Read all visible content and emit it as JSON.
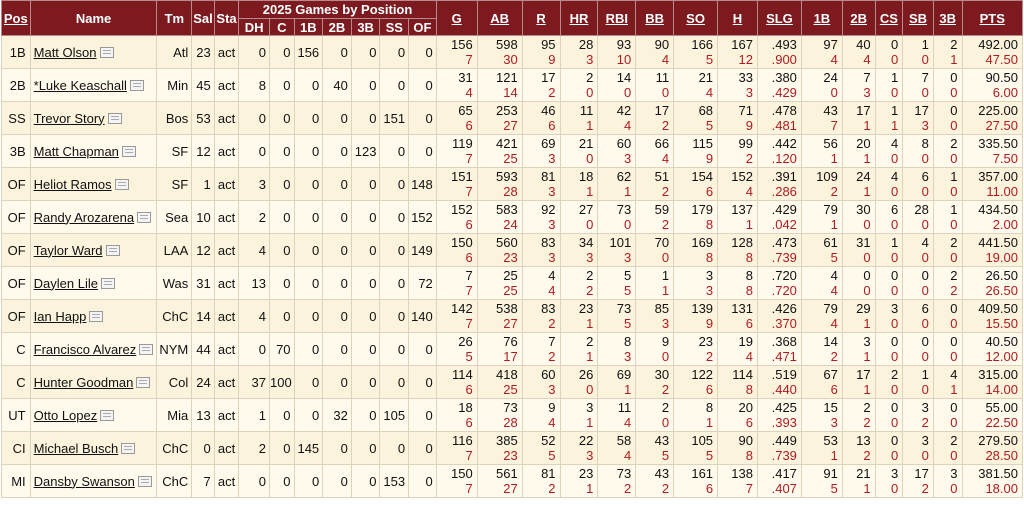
{
  "header_group": "2025 Games by Position",
  "columns": {
    "pos": "Pos",
    "name": "Name",
    "tm": "Tm",
    "sal": "Sal",
    "sta": "Sta",
    "gbp": [
      "DH",
      "C",
      "1B",
      "2B",
      "3B",
      "SS",
      "OF"
    ],
    "stats": [
      "G",
      "AB",
      "R",
      "HR",
      "RBI",
      "BB",
      "SO",
      "H",
      "SLG",
      "1B",
      "2B",
      "CS",
      "SB",
      "3B",
      "PTS"
    ]
  },
  "rows": [
    {
      "pos": "1B",
      "name": "Matt Olson",
      "tm": "Atl",
      "sal": "23",
      "sta": "act",
      "gbp": [
        "0",
        "0",
        "156",
        "0",
        "0",
        "0",
        "0"
      ],
      "tot": [
        "156",
        "598",
        "95",
        "28",
        "93",
        "90",
        "166",
        "167",
        ".493",
        "97",
        "40",
        "0",
        "1",
        "2",
        "492.00"
      ],
      "wk": [
        "7",
        "30",
        "9",
        "3",
        "10",
        "4",
        "5",
        "12",
        ".900",
        "4",
        "4",
        "0",
        "0",
        "1",
        "47.50"
      ]
    },
    {
      "pos": "2B",
      "name": "*Luke Keaschall",
      "tm": "Min",
      "sal": "45",
      "sta": "act",
      "gbp": [
        "8",
        "0",
        "0",
        "40",
        "0",
        "0",
        "0"
      ],
      "tot": [
        "31",
        "121",
        "17",
        "2",
        "14",
        "11",
        "21",
        "33",
        ".380",
        "24",
        "7",
        "1",
        "7",
        "0",
        "90.50"
      ],
      "wk": [
        "4",
        "14",
        "2",
        "0",
        "0",
        "0",
        "4",
        "3",
        ".429",
        "0",
        "3",
        "0",
        "0",
        "0",
        "6.00"
      ]
    },
    {
      "pos": "SS",
      "name": "Trevor Story",
      "tm": "Bos",
      "sal": "53",
      "sta": "act",
      "gbp": [
        "0",
        "0",
        "0",
        "0",
        "0",
        "151",
        "0"
      ],
      "tot": [
        "65",
        "253",
        "46",
        "11",
        "42",
        "17",
        "68",
        "71",
        ".478",
        "43",
        "17",
        "1",
        "17",
        "0",
        "225.00"
      ],
      "wk": [
        "6",
        "27",
        "6",
        "1",
        "4",
        "2",
        "5",
        "9",
        ".481",
        "7",
        "1",
        "1",
        "3",
        "0",
        "27.50"
      ]
    },
    {
      "pos": "3B",
      "name": "Matt Chapman",
      "tm": "SF",
      "sal": "12",
      "sta": "act",
      "gbp": [
        "0",
        "0",
        "0",
        "0",
        "123",
        "0",
        "0"
      ],
      "tot": [
        "119",
        "421",
        "69",
        "21",
        "60",
        "66",
        "115",
        "99",
        ".442",
        "56",
        "20",
        "4",
        "8",
        "2",
        "335.50"
      ],
      "wk": [
        "7",
        "25",
        "3",
        "0",
        "3",
        "4",
        "9",
        "2",
        ".120",
        "1",
        "1",
        "0",
        "0",
        "0",
        "7.50"
      ]
    },
    {
      "pos": "OF",
      "name": "Heliot Ramos",
      "tm": "SF",
      "sal": "1",
      "sta": "act",
      "gbp": [
        "3",
        "0",
        "0",
        "0",
        "0",
        "0",
        "148"
      ],
      "tot": [
        "151",
        "593",
        "81",
        "18",
        "62",
        "51",
        "154",
        "152",
        ".391",
        "109",
        "24",
        "4",
        "6",
        "1",
        "357.00"
      ],
      "wk": [
        "7",
        "28",
        "3",
        "1",
        "1",
        "2",
        "6",
        "4",
        ".286",
        "2",
        "1",
        "0",
        "0",
        "0",
        "11.00"
      ]
    },
    {
      "pos": "OF",
      "name": "Randy Arozarena",
      "tm": "Sea",
      "sal": "10",
      "sta": "act",
      "gbp": [
        "2",
        "0",
        "0",
        "0",
        "0",
        "0",
        "152"
      ],
      "tot": [
        "152",
        "583",
        "92",
        "27",
        "73",
        "59",
        "179",
        "137",
        ".429",
        "79",
        "30",
        "6",
        "28",
        "1",
        "434.50"
      ],
      "wk": [
        "6",
        "24",
        "3",
        "0",
        "0",
        "2",
        "8",
        "1",
        ".042",
        "1",
        "0",
        "0",
        "0",
        "0",
        "2.00"
      ]
    },
    {
      "pos": "OF",
      "name": "Taylor Ward",
      "tm": "LAA",
      "sal": "12",
      "sta": "act",
      "gbp": [
        "4",
        "0",
        "0",
        "0",
        "0",
        "0",
        "149"
      ],
      "tot": [
        "150",
        "560",
        "83",
        "34",
        "101",
        "70",
        "169",
        "128",
        ".473",
        "61",
        "31",
        "1",
        "4",
        "2",
        "441.50"
      ],
      "wk": [
        "6",
        "23",
        "3",
        "3",
        "3",
        "0",
        "8",
        "8",
        ".739",
        "5",
        "0",
        "0",
        "0",
        "0",
        "19.00"
      ]
    },
    {
      "pos": "OF",
      "name": "Daylen Lile",
      "tm": "Was",
      "sal": "31",
      "sta": "act",
      "gbp": [
        "13",
        "0",
        "0",
        "0",
        "0",
        "0",
        "72"
      ],
      "tot": [
        "7",
        "25",
        "4",
        "2",
        "5",
        "1",
        "3",
        "8",
        ".720",
        "4",
        "0",
        "0",
        "0",
        "2",
        "26.50"
      ],
      "wk": [
        "7",
        "25",
        "4",
        "2",
        "5",
        "1",
        "3",
        "8",
        ".720",
        "4",
        "0",
        "0",
        "0",
        "2",
        "26.50"
      ]
    },
    {
      "pos": "OF",
      "name": "Ian Happ",
      "tm": "ChC",
      "sal": "14",
      "sta": "act",
      "gbp": [
        "4",
        "0",
        "0",
        "0",
        "0",
        "0",
        "140"
      ],
      "tot": [
        "142",
        "538",
        "83",
        "23",
        "73",
        "85",
        "139",
        "131",
        ".426",
        "79",
        "29",
        "3",
        "6",
        "0",
        "409.50"
      ],
      "wk": [
        "7",
        "27",
        "2",
        "1",
        "5",
        "3",
        "9",
        "6",
        ".370",
        "4",
        "1",
        "0",
        "0",
        "0",
        "15.50"
      ]
    },
    {
      "pos": "C",
      "name": "Francisco Alvarez",
      "tm": "NYM",
      "sal": "44",
      "sta": "act",
      "gbp": [
        "0",
        "70",
        "0",
        "0",
        "0",
        "0",
        "0"
      ],
      "tot": [
        "26",
        "76",
        "7",
        "2",
        "8",
        "9",
        "23",
        "19",
        ".368",
        "14",
        "3",
        "0",
        "0",
        "0",
        "40.50"
      ],
      "wk": [
        "5",
        "17",
        "2",
        "1",
        "3",
        "0",
        "2",
        "4",
        ".471",
        "2",
        "1",
        "0",
        "0",
        "0",
        "12.00"
      ]
    },
    {
      "pos": "C",
      "name": "Hunter Goodman",
      "tm": "Col",
      "sal": "24",
      "sta": "act",
      "gbp": [
        "37",
        "100",
        "0",
        "0",
        "0",
        "0",
        "0"
      ],
      "tot": [
        "114",
        "418",
        "60",
        "26",
        "69",
        "30",
        "122",
        "114",
        ".519",
        "67",
        "17",
        "2",
        "1",
        "4",
        "315.00"
      ],
      "wk": [
        "6",
        "25",
        "3",
        "0",
        "1",
        "2",
        "6",
        "8",
        ".440",
        "6",
        "1",
        "0",
        "0",
        "1",
        "14.00"
      ]
    },
    {
      "pos": "UT",
      "name": "Otto Lopez",
      "tm": "Mia",
      "sal": "13",
      "sta": "act",
      "gbp": [
        "1",
        "0",
        "0",
        "32",
        "0",
        "105",
        "0"
      ],
      "tot": [
        "18",
        "73",
        "9",
        "3",
        "11",
        "2",
        "8",
        "20",
        ".425",
        "15",
        "2",
        "0",
        "3",
        "0",
        "55.00"
      ],
      "wk": [
        "6",
        "28",
        "4",
        "1",
        "4",
        "0",
        "1",
        "6",
        ".393",
        "3",
        "2",
        "0",
        "2",
        "0",
        "22.50"
      ]
    },
    {
      "pos": "CI",
      "name": "Michael Busch",
      "tm": "ChC",
      "sal": "0",
      "sta": "act",
      "gbp": [
        "2",
        "0",
        "145",
        "0",
        "0",
        "0",
        "0"
      ],
      "tot": [
        "116",
        "385",
        "52",
        "22",
        "58",
        "43",
        "105",
        "90",
        ".449",
        "53",
        "13",
        "0",
        "3",
        "2",
        "279.50"
      ],
      "wk": [
        "7",
        "23",
        "5",
        "3",
        "4",
        "5",
        "5",
        "8",
        ".739",
        "1",
        "2",
        "0",
        "0",
        "0",
        "28.50"
      ]
    },
    {
      "pos": "MI",
      "name": "Dansby Swanson",
      "tm": "ChC",
      "sal": "7",
      "sta": "act",
      "gbp": [
        "0",
        "0",
        "0",
        "0",
        "0",
        "153",
        "0"
      ],
      "tot": [
        "150",
        "561",
        "81",
        "23",
        "73",
        "43",
        "161",
        "138",
        ".417",
        "91",
        "21",
        "3",
        "17",
        "3",
        "381.50"
      ],
      "wk": [
        "7",
        "27",
        "2",
        "1",
        "2",
        "2",
        "6",
        "7",
        ".407",
        "5",
        "1",
        "0",
        "2",
        "0",
        "18.00"
      ]
    }
  ]
}
